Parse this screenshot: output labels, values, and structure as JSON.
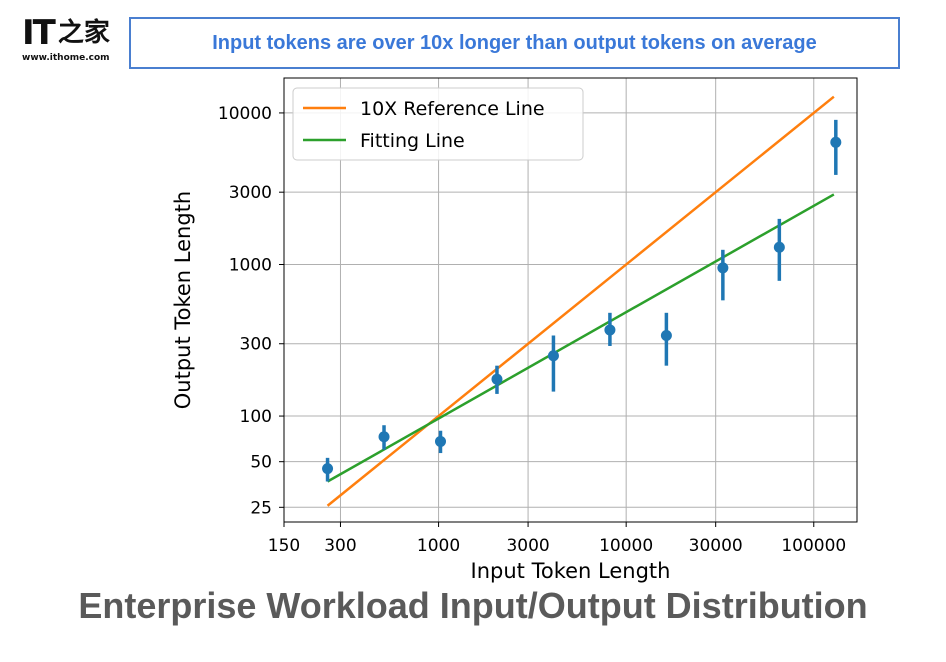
{
  "logo": {
    "mark": "IT",
    "chinese": "之家",
    "url": "www.ithome.com"
  },
  "banner": {
    "text": "Input tokens are over 10x longer than output tokens on average"
  },
  "footer_title": "Enterprise Workload Input/Output Distribution",
  "chart_data": {
    "type": "scatter",
    "xlabel": "Input Token Length",
    "ylabel": "Output Token Length",
    "x_scale": "log",
    "y_scale": "log",
    "xlim": [
      150,
      170000
    ],
    "ylim": [
      20,
      17000
    ],
    "x_ticks": [
      150,
      300,
      1000,
      3000,
      10000,
      30000,
      100000
    ],
    "x_tick_labels": [
      "150",
      "300",
      "1000",
      "3000",
      "10000",
      "30000",
      "100000"
    ],
    "y_ticks": [
      25,
      50,
      100,
      300,
      1000,
      3000,
      10000
    ],
    "y_tick_labels": [
      "25",
      "50",
      "100",
      "300",
      "1000",
      "3000",
      "10000"
    ],
    "grid": true,
    "legend_position": "top-left",
    "colors": {
      "reference": "#ff7f0e",
      "fitting": "#2ca02c",
      "points": "#1f77b4"
    },
    "series": [
      {
        "name": "10X Reference Line",
        "type": "line",
        "x": [
          256,
          128000
        ],
        "y": [
          25.6,
          12800
        ]
      },
      {
        "name": "Fitting Line",
        "type": "line",
        "x": [
          256,
          128000
        ],
        "y": [
          37,
          2900
        ]
      },
      {
        "type": "errorbar",
        "x": [
          256,
          512,
          1024,
          2048,
          4096,
          8192,
          16384,
          32768,
          65536,
          131072
        ],
        "y": [
          45,
          73,
          68,
          175,
          250,
          370,
          340,
          950,
          1300,
          6400
        ],
        "y_low": [
          37,
          60,
          57,
          140,
          145,
          290,
          215,
          580,
          780,
          3900
        ],
        "y_high": [
          53,
          87,
          80,
          215,
          340,
          480,
          480,
          1250,
          2000,
          9000
        ]
      }
    ]
  }
}
